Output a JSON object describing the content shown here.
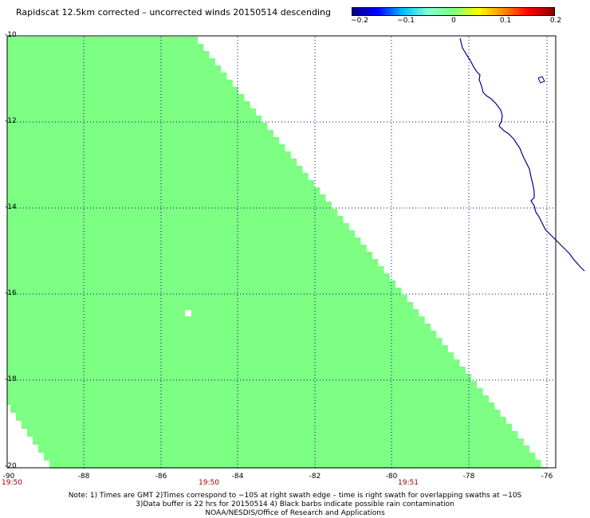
{
  "title": "Rapidscat 12.5km corrected – uncorrected winds 20150514 descending",
  "colorbar": {
    "ticks": [
      "−0.2",
      "−0.1",
      "0",
      "0.1",
      "0.2"
    ],
    "colors": [
      "#00008b",
      "#0000ff",
      "#00bfff",
      "#7fffd4",
      "#7fff7f",
      "#ffff00",
      "#ff8c00",
      "#ff0000",
      "#8b0000"
    ]
  },
  "map": {
    "lat_labels": [
      "-10",
      "-12",
      "-14",
      "-16",
      "-18",
      "-20"
    ],
    "lon_labels": [
      "-90",
      "-88",
      "-86",
      "-84",
      "-82",
      "-80",
      "-78",
      "-76"
    ],
    "time_labels": [
      "19:50",
      "19:50",
      "19:51"
    ],
    "swath_color": "#7cff82",
    "grid_color": "#00008b",
    "coast_color": "#00008b",
    "lat_range": [
      -20,
      -10
    ],
    "lon_range": [
      -90,
      -75.3
    ]
  },
  "notes": {
    "line1": "Note: 1) Times are GMT 2)Times correspond to −10S at right swath edge – time is right swath for overlapping swaths at −10S",
    "line2": "3)Data buffer is 22 hrs for 20150514 4) Black barbs indicate possible rain contamination",
    "line3": "NOAA/NESDIS/Office of Research and Applications"
  }
}
